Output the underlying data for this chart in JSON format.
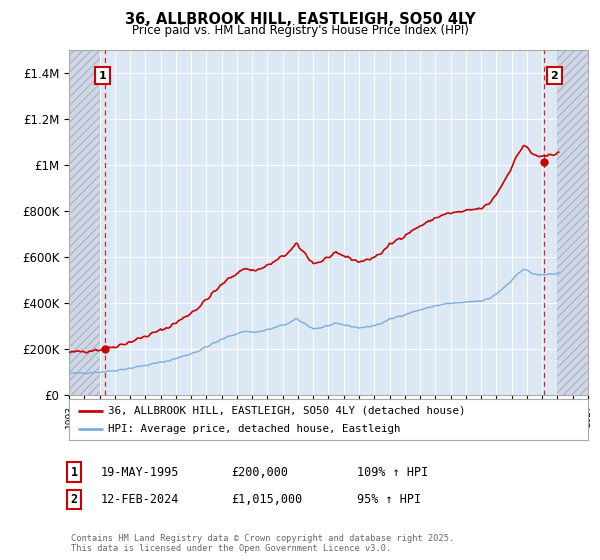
{
  "title": "36, ALLBROOK HILL, EASTLEIGH, SO50 4LY",
  "subtitle": "Price paid vs. HM Land Registry's House Price Index (HPI)",
  "ylim": [
    0,
    1500000
  ],
  "xlim_year": [
    1993,
    2027
  ],
  "yticks": [
    0,
    200000,
    400000,
    600000,
    800000,
    1000000,
    1200000,
    1400000
  ],
  "ytick_labels": [
    "£0",
    "£200K",
    "£400K",
    "£600K",
    "£800K",
    "£1M",
    "£1.2M",
    "£1.4M"
  ],
  "bg_color": "#ffffff",
  "plot_bg_color": "#dce9f5",
  "grid_color": "#ffffff",
  "hatch_color": "#b0b8c8",
  "red_color": "#cc0000",
  "blue_color": "#7aaddb",
  "marker1_year": 1995.37,
  "marker1_price": 200000,
  "marker2_year": 2024.12,
  "marker2_price": 1015000,
  "legend_label1": "36, ALLBROOK HILL, EASTLEIGH, SO50 4LY (detached house)",
  "legend_label2": "HPI: Average price, detached house, Eastleigh",
  "table_row1": [
    "1",
    "19-MAY-1995",
    "£200,000",
    "109% ↑ HPI"
  ],
  "table_row2": [
    "2",
    "12-FEB-2024",
    "£1,015,000",
    "95% ↑ HPI"
  ],
  "footnote": "Contains HM Land Registry data © Crown copyright and database right 2025.\nThis data is licensed under the Open Government Licence v3.0."
}
